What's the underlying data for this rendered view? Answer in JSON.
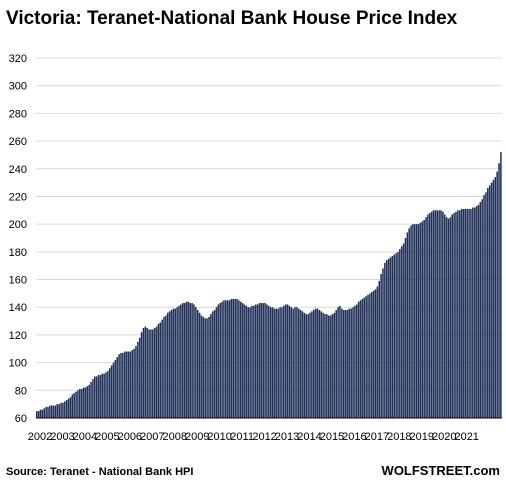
{
  "chart_data": {
    "type": "bar",
    "title": "Victoria: Teranet-National  Bank House Price Index",
    "xlabel": "",
    "ylabel": "",
    "ylim": [
      60,
      320
    ],
    "yticks": [
      60,
      80,
      100,
      120,
      140,
      160,
      180,
      200,
      220,
      240,
      260,
      280,
      300,
      320
    ],
    "xticks": [
      "2002",
      "2003",
      "2004",
      "2005",
      "2006",
      "2007",
      "2008",
      "2009",
      "2010",
      "2011",
      "2012",
      "2013",
      "2014",
      "2015",
      "2016",
      "2017",
      "2018",
      "2019",
      "2020",
      "2021"
    ],
    "grid": true,
    "bar_color": "#1f2f57",
    "x_start": "2002-01",
    "x_end": "2021-07",
    "values": [
      65,
      65,
      66,
      66,
      67,
      68,
      68,
      69,
      69,
      69,
      69,
      70,
      70,
      71,
      71,
      72,
      73,
      74,
      75,
      77,
      78,
      79,
      80,
      81,
      81,
      82,
      82,
      83,
      84,
      86,
      88,
      90,
      90,
      91,
      91,
      92,
      92,
      93,
      94,
      96,
      98,
      100,
      102,
      104,
      106,
      107,
      107,
      108,
      108,
      108,
      108,
      109,
      110,
      112,
      115,
      118,
      122,
      125,
      126,
      125,
      124,
      124,
      124,
      125,
      126,
      128,
      129,
      131,
      133,
      134,
      136,
      137,
      138,
      139,
      139,
      140,
      141,
      142,
      143,
      143,
      144,
      144,
      143,
      143,
      142,
      140,
      138,
      136,
      134,
      133,
      132,
      132,
      133,
      135,
      137,
      138,
      140,
      142,
      143,
      144,
      145,
      145,
      145,
      145,
      146,
      146,
      146,
      146,
      145,
      144,
      143,
      142,
      141,
      140,
      140,
      141,
      141,
      142,
      142,
      143,
      143,
      143,
      143,
      142,
      141,
      140,
      140,
      139,
      139,
      139,
      140,
      140,
      141,
      142,
      142,
      141,
      140,
      139,
      140,
      140,
      139,
      138,
      137,
      136,
      135,
      135,
      136,
      137,
      138,
      139,
      139,
      138,
      137,
      136,
      135,
      135,
      134,
      134,
      135,
      136,
      138,
      140,
      141,
      139,
      138,
      138,
      138,
      139,
      139,
      140,
      141,
      142,
      144,
      145,
      146,
      147,
      148,
      149,
      150,
      151,
      152,
      153,
      155,
      159,
      164,
      168,
      172,
      174,
      175,
      176,
      177,
      178,
      179,
      180,
      182,
      184,
      186,
      190,
      194,
      197,
      199,
      200,
      200,
      200,
      200,
      201,
      202,
      203,
      205,
      207,
      208,
      209,
      210,
      210,
      210,
      210,
      210,
      209,
      207,
      205,
      204,
      205,
      207,
      208,
      209,
      210,
      210,
      211,
      211,
      211,
      211,
      211,
      211,
      212,
      212,
      213,
      214,
      216,
      218,
      221,
      223,
      226,
      228,
      230,
      232,
      234,
      238,
      244,
      252
    ]
  },
  "footer": {
    "source": "Source: Teranet - National Bank HPI",
    "brand": "WOLFSTREET.com"
  }
}
